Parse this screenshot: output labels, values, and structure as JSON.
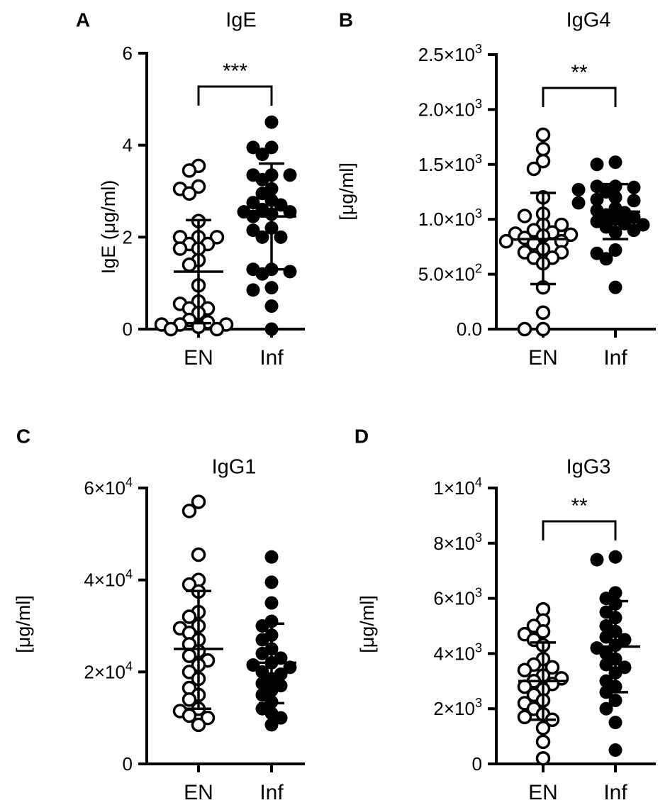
{
  "chart_data": [
    {
      "type": "scatter",
      "panel": "A",
      "title": "IgE",
      "ylabel": "IgE (μg/ml)",
      "categories": [
        "EN",
        "Inf"
      ],
      "ylim": [
        0,
        6
      ],
      "yticks": [
        {
          "v": 0,
          "label": "0"
        },
        {
          "v": 2,
          "label": "2"
        },
        {
          "v": 4,
          "label": "4"
        },
        {
          "v": 6,
          "label": "6"
        }
      ],
      "significance": "***",
      "series": [
        {
          "name": "EN",
          "filled": false,
          "mean": 1.25,
          "sd_upper": 2.37,
          "sd_lower": 0.13,
          "values": [
            3.55,
            3.45,
            3.05,
            3.1,
            2.95,
            2.35,
            2.0,
            2.0,
            2.0,
            1.85,
            1.85,
            1.75,
            1.75,
            1.5,
            1.4,
            0.95,
            0.6,
            0.55,
            0.45,
            0.45,
            0.35,
            0.2,
            0.15,
            0.1,
            0.1,
            0.05,
            0.0,
            0.05,
            0.1,
            0.0
          ]
        },
        {
          "name": "Inf",
          "filled": true,
          "mean": 2.45,
          "sd_upper": 3.6,
          "sd_lower": 1.3,
          "values": [
            4.5,
            3.95,
            3.95,
            3.8,
            3.35,
            3.25,
            3.35,
            3.35,
            3.05,
            2.95,
            2.8,
            2.75,
            2.7,
            2.6,
            2.55,
            2.5,
            2.45,
            2.55,
            2.2,
            2.15,
            2.0,
            2.0,
            1.3,
            1.25,
            1.2,
            1.3,
            0.9,
            0.85,
            0.5,
            0.0
          ]
        }
      ]
    },
    {
      "type": "scatter",
      "panel": "B",
      "title": "IgG4",
      "ylabel": "[μg/ml]",
      "categories": [
        "EN",
        "Inf"
      ],
      "ylim": [
        0,
        2500
      ],
      "yticks": [
        {
          "v": 0,
          "label": "0.0"
        },
        {
          "v": 500,
          "label": "5.0×10",
          "exp": "2"
        },
        {
          "v": 1000,
          "label": "1.0×10",
          "exp": "3"
        },
        {
          "v": 1500,
          "label": "1.5×10",
          "exp": "3"
        },
        {
          "v": 2000,
          "label": "2.0×10",
          "exp": "3"
        },
        {
          "v": 2500,
          "label": "2.5×10",
          "exp": "3"
        }
      ],
      "significance": "**",
      "series": [
        {
          "name": "EN",
          "filled": false,
          "mean": 820,
          "sd_upper": 1240,
          "sd_lower": 410,
          "values": [
            1770,
            1640,
            1530,
            1460,
            1200,
            1050,
            1030,
            950,
            950,
            900,
            880,
            870,
            860,
            850,
            830,
            800,
            800,
            780,
            730,
            700,
            700,
            650,
            650,
            600,
            380,
            150,
            0,
            0
          ]
        },
        {
          "name": "Inf",
          "filled": true,
          "mean": 1070,
          "sd_upper": 1320,
          "sd_lower": 820,
          "values": [
            1520,
            1500,
            1300,
            1300,
            1290,
            1270,
            1250,
            1200,
            1180,
            1170,
            1150,
            1100,
            1080,
            1060,
            1040,
            1020,
            1000,
            980,
            960,
            950,
            930,
            900,
            880,
            720,
            690,
            640,
            380
          ]
        }
      ]
    },
    {
      "type": "scatter",
      "panel": "C",
      "title": "IgG1",
      "ylabel": "[μg/ml]",
      "categories": [
        "EN",
        "Inf"
      ],
      "ylim": [
        0,
        60000
      ],
      "yticks": [
        {
          "v": 0,
          "label": "0"
        },
        {
          "v": 20000,
          "label": "2×10",
          "exp": "4"
        },
        {
          "v": 40000,
          "label": "4×10",
          "exp": "4"
        },
        {
          "v": 60000,
          "label": "6×10",
          "exp": "4"
        }
      ],
      "significance": "",
      "series": [
        {
          "name": "EN",
          "filled": false,
          "mean": 25000,
          "sd_upper": 37600,
          "sd_lower": 12000,
          "values": [
            57000,
            55000,
            45500,
            40000,
            39000,
            37500,
            33000,
            32000,
            30000,
            29500,
            28500,
            27000,
            26000,
            24500,
            23500,
            22500,
            21500,
            20000,
            18500,
            16500,
            15000,
            14000,
            12000,
            11500,
            10500,
            10000,
            8500
          ]
        },
        {
          "name": "Inf",
          "filled": true,
          "mean": 22000,
          "sd_upper": 30500,
          "sd_lower": 13200,
          "values": [
            45000,
            39500,
            35000,
            31000,
            30000,
            28000,
            27000,
            25000,
            24000,
            23000,
            22000,
            21500,
            21000,
            20000,
            19500,
            18500,
            17500,
            17000,
            16000,
            15000,
            13500,
            12000,
            11000,
            10000,
            8500
          ]
        }
      ]
    },
    {
      "type": "scatter",
      "panel": "D",
      "title": "IgG3",
      "ylabel": "[μg/ml]",
      "categories": [
        "EN",
        "Inf"
      ],
      "ylim": [
        0,
        10000
      ],
      "yticks": [
        {
          "v": 0,
          "label": "0"
        },
        {
          "v": 2000,
          "label": "2×10",
          "exp": "3"
        },
        {
          "v": 4000,
          "label": "4×10",
          "exp": "3"
        },
        {
          "v": 6000,
          "label": "6×10",
          "exp": "3"
        },
        {
          "v": 8000,
          "label": "8×10",
          "exp": "3"
        },
        {
          "v": 10000,
          "label": "1×10",
          "exp": "4"
        }
      ],
      "significance": "**",
      "series": [
        {
          "name": "EN",
          "filled": false,
          "mean": 3000,
          "sd_upper": 4400,
          "sd_lower": 1600,
          "values": [
            5600,
            5200,
            5000,
            4800,
            4700,
            4500,
            4300,
            3800,
            3600,
            3500,
            3400,
            3200,
            3100,
            3000,
            2900,
            2800,
            2700,
            2500,
            2300,
            2200,
            2000,
            1800,
            1700,
            1600,
            1300,
            800,
            200
          ]
        },
        {
          "name": "Inf",
          "filled": true,
          "mean": 4250,
          "sd_upper": 5900,
          "sd_lower": 2600,
          "values": [
            7500,
            7400,
            6200,
            6000,
            5800,
            5500,
            5300,
            5000,
            4800,
            4600,
            4500,
            4300,
            4200,
            4000,
            3800,
            3600,
            3500,
            3300,
            3000,
            2800,
            2600,
            2300,
            2000,
            1500,
            500
          ]
        }
      ]
    }
  ]
}
